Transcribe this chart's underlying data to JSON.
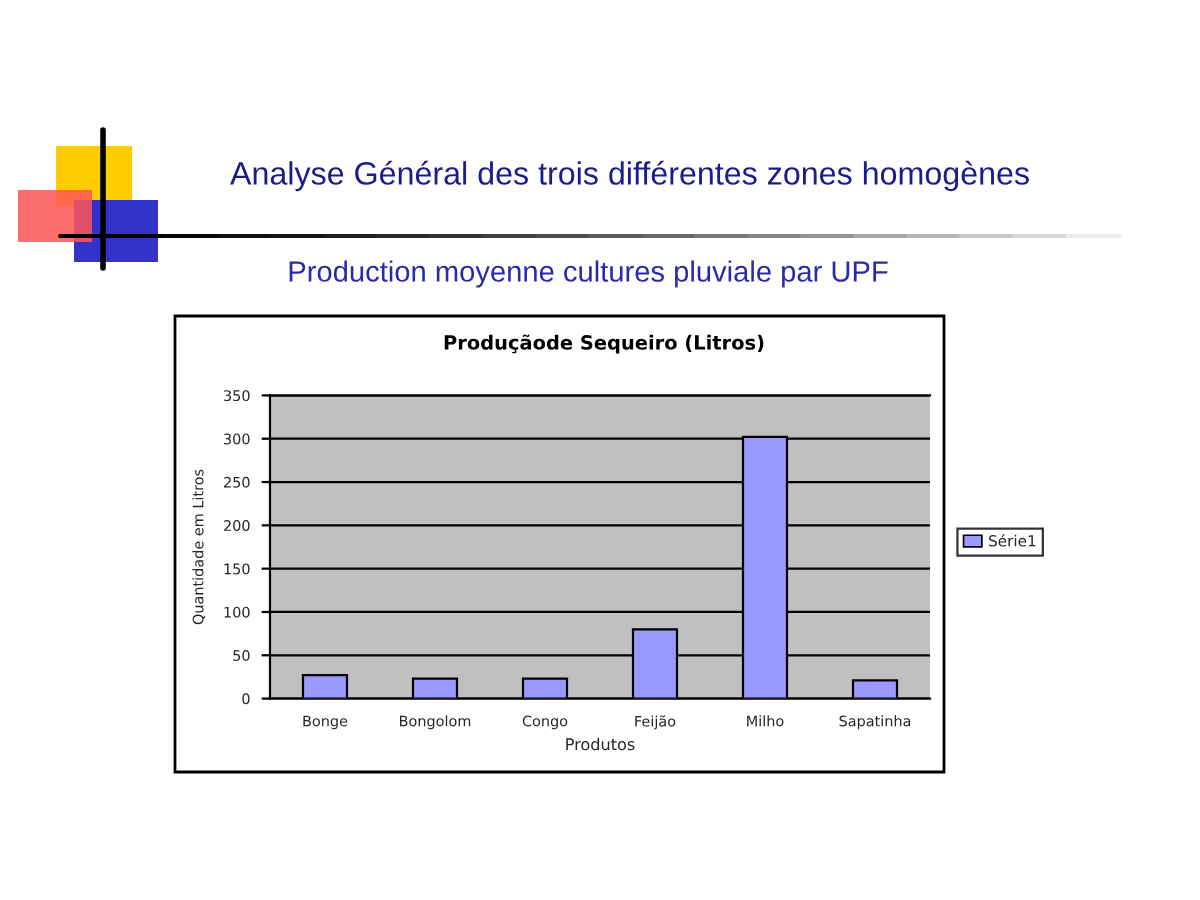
{
  "chart_data": {
    "type": "bar",
    "title": "Analyse Général des trois différentes zones homogènes",
    "subtitle": "Production moyenne cultures pluviale par UPF",
    "annotations": [
      "Produçãode Sequeiro (Litros)"
    ],
    "xlabel": "Produtos",
    "ylabel": "Quantidade em Litros",
    "categories": [
      "Bonge",
      "Bongolom",
      "Congo",
      "Feijão",
      "Milho",
      "Sapatinha"
    ],
    "series": [
      {
        "name": "Série1",
        "color": "#9999ff",
        "values": [
          27,
          23,
          23,
          80,
          302,
          21
        ]
      }
    ],
    "ylim": [
      0,
      350
    ],
    "yticks": [
      0,
      50,
      100,
      150,
      200,
      250,
      300,
      350
    ],
    "grid": "y",
    "legend": "right"
  }
}
